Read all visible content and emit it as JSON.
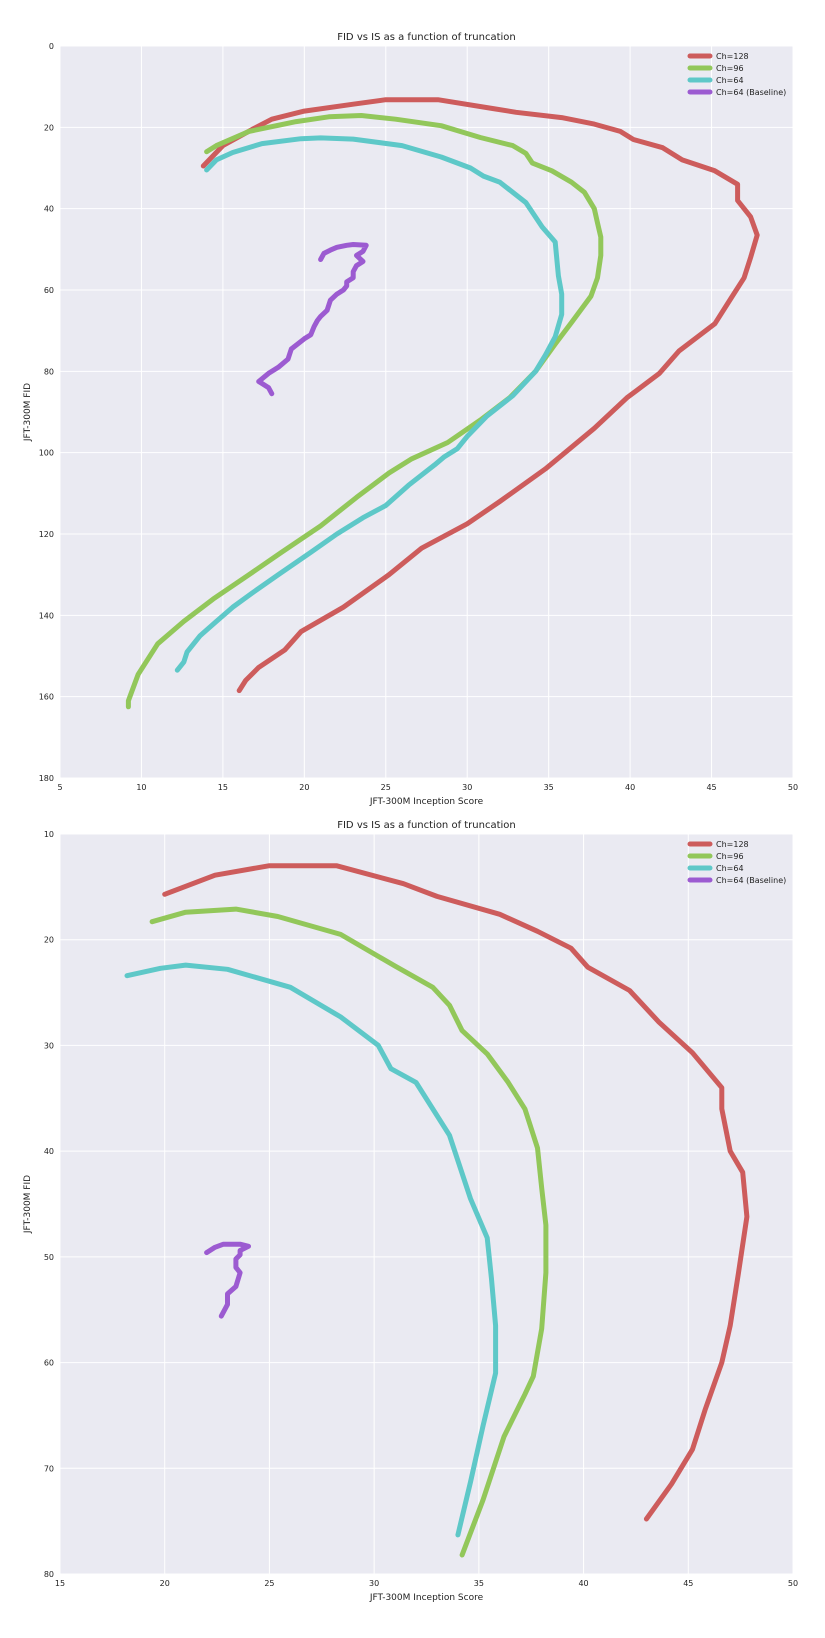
{
  "chart_data": [
    {
      "type": "line",
      "title": "FID vs IS as a function of truncation",
      "xlabel": "JFT-300M Inception Score",
      "ylabel": "JFT-300M FID",
      "xlim": [
        5,
        50
      ],
      "ylim": [
        0,
        180
      ],
      "y_inverted": true,
      "xticks": [
        5,
        10,
        15,
        20,
        25,
        30,
        35,
        40,
        45,
        50
      ],
      "yticks": [
        0,
        20,
        40,
        60,
        80,
        100,
        120,
        140,
        160,
        180
      ],
      "grid": true,
      "legend_position": "top-right",
      "series": [
        {
          "name": "Ch=128",
          "color": "#cd5c5c",
          "x": [
            16.0,
            16.4,
            17.2,
            18.8,
            19.8,
            22.4,
            25.2,
            27.2,
            30.0,
            32.0,
            34.8,
            37.8,
            39.8,
            41.8,
            43.0,
            45.2,
            46.2,
            47.0,
            47.4,
            47.8,
            47.4,
            46.6,
            46.6,
            45.2,
            43.2,
            42.0,
            40.2,
            39.4,
            37.8,
            35.8,
            33.0,
            31.6,
            28.2,
            25.0,
            23.0,
            20.0,
            18.0,
            16.8,
            15.0,
            13.8
          ],
          "y": [
            158.5,
            156.0,
            152.8,
            148.5,
            144.0,
            138.0,
            130.0,
            123.5,
            117.5,
            112.0,
            104.0,
            94.0,
            86.5,
            80.5,
            75.0,
            68.3,
            62.0,
            57.0,
            52.0,
            46.5,
            42.0,
            38.0,
            34.0,
            30.7,
            28.0,
            25.0,
            23.0,
            21.0,
            19.2,
            17.6,
            16.3,
            15.4,
            13.2,
            13.2,
            14.3,
            16.0,
            18.0,
            20.5,
            24.5,
            29.5
          ]
        },
        {
          "name": "Ch=96",
          "color": "#92c75a",
          "x": [
            9.2,
            9.2,
            9.8,
            11.0,
            12.6,
            14.4,
            16.6,
            18.6,
            21.0,
            23.2,
            25.2,
            26.6,
            28.8,
            30.8,
            32.6,
            34.2,
            35.4,
            36.4,
            37.6,
            38.0,
            38.2,
            38.2,
            38.0,
            37.8,
            37.2,
            36.4,
            35.2,
            34.0,
            33.6,
            32.8,
            30.8,
            28.4,
            25.6,
            23.5,
            21.5,
            19.5,
            16.6,
            14.6,
            14.0
          ],
          "y": [
            162.5,
            161.0,
            154.5,
            147.0,
            141.5,
            136.0,
            130.0,
            124.5,
            118.0,
            111.0,
            105.0,
            101.5,
            97.5,
            92.0,
            86.5,
            80.0,
            73.3,
            68.0,
            61.5,
            57.0,
            51.5,
            47.0,
            43.5,
            40.0,
            36.0,
            33.5,
            30.7,
            28.8,
            26.4,
            24.5,
            22.5,
            19.6,
            18.0,
            17.1,
            17.4,
            18.6,
            21.0,
            24.5,
            26.0
          ]
        },
        {
          "name": "Ch=64",
          "color": "#5ec8c8",
          "x": [
            12.2,
            12.6,
            12.8,
            13.6,
            14.6,
            15.6,
            16.8,
            18.4,
            20.4,
            22.0,
            23.6,
            25.0,
            26.4,
            28.0,
            28.6,
            29.4,
            30.0,
            31.2,
            32.8,
            34.2,
            34.8,
            35.4,
            35.8,
            35.8,
            35.6,
            35.4,
            34.6,
            33.6,
            32.0,
            31.0,
            30.2,
            28.4,
            26.0,
            23.0,
            21.0,
            19.8,
            17.4,
            15.6,
            14.6,
            14.0
          ],
          "y": [
            153.5,
            151.5,
            149.0,
            145.0,
            141.5,
            138.0,
            134.5,
            130.0,
            124.5,
            120.0,
            116.0,
            113.0,
            108.0,
            103.0,
            101.0,
            99.0,
            96.0,
            91.0,
            86.0,
            80.0,
            76.0,
            71.5,
            66.0,
            61.0,
            56.5,
            48.2,
            44.5,
            38.5,
            33.5,
            32.0,
            30.0,
            27.3,
            24.5,
            22.9,
            22.6,
            22.8,
            24.0,
            26.2,
            28.0,
            30.5
          ]
        },
        {
          "name": "Ch=64 (Baseline)",
          "color": "#9c5bd1",
          "x": [
            18.0,
            17.8,
            17.4,
            17.2,
            17.8,
            18.4,
            19.0,
            19.2,
            20.0,
            20.4,
            20.6,
            20.8,
            21.0,
            21.4,
            21.6,
            22.0,
            22.4,
            22.6,
            22.6,
            23.0,
            23.0,
            23.2,
            23.6,
            23.2,
            23.6,
            23.8,
            23.0,
            22.6,
            22.0,
            21.6,
            21.2,
            21.0
          ],
          "y": [
            85.5,
            84.0,
            83.0,
            82.5,
            80.5,
            79.0,
            77.0,
            74.5,
            72.0,
            71.0,
            69.0,
            67.5,
            66.5,
            65.0,
            62.5,
            61.0,
            60.0,
            59.0,
            58.0,
            57.0,
            55.5,
            54.0,
            53.0,
            51.5,
            50.5,
            49.0,
            48.8,
            49.0,
            49.5,
            50.2,
            51.0,
            52.5
          ]
        }
      ]
    },
    {
      "type": "line",
      "title": "FID vs IS as a function of truncation",
      "xlabel": "JFT-300M Inception Score",
      "ylabel": "JFT-300M FID",
      "xlim": [
        15,
        50
      ],
      "ylim": [
        10,
        80
      ],
      "y_inverted": true,
      "xticks": [
        15,
        20,
        25,
        30,
        35,
        40,
        45,
        50
      ],
      "yticks": [
        10,
        20,
        30,
        40,
        50,
        60,
        70,
        80
      ],
      "grid": true,
      "legend_position": "top-right",
      "series": [
        {
          "name": "Ch=128",
          "color": "#cd5c5c",
          "x": [
            43.0,
            44.2,
            45.2,
            45.8,
            46.6,
            47.0,
            47.4,
            47.8,
            47.6,
            47.0,
            46.8,
            46.6,
            46.6,
            45.2,
            43.6,
            42.2,
            40.2,
            39.4,
            37.8,
            36.0,
            33.0,
            31.4,
            28.2,
            25.0,
            22.4,
            20.0
          ],
          "y": [
            74.8,
            71.5,
            68.2,
            64.5,
            60.0,
            56.5,
            51.5,
            46.2,
            42.0,
            40.0,
            38.0,
            36.0,
            34.0,
            30.7,
            27.8,
            24.8,
            22.6,
            20.8,
            19.2,
            17.6,
            15.9,
            14.7,
            13.0,
            13.0,
            13.9,
            15.7
          ]
        },
        {
          "name": "Ch=96",
          "color": "#92c75a",
          "x": [
            34.2,
            35.2,
            36.2,
            37.2,
            37.6,
            38.0,
            38.2,
            38.2,
            38.0,
            37.8,
            37.2,
            36.4,
            35.4,
            34.2,
            33.6,
            32.8,
            31.0,
            28.4,
            25.4,
            23.4,
            21.0,
            19.4
          ],
          "y": [
            78.2,
            73.0,
            67.0,
            63.0,
            61.3,
            56.8,
            51.5,
            47.0,
            43.5,
            39.7,
            36.0,
            33.5,
            30.8,
            28.6,
            26.2,
            24.5,
            22.5,
            19.5,
            17.8,
            17.1,
            17.4,
            18.3
          ]
        },
        {
          "name": "Ch=64",
          "color": "#5ec8c8",
          "x": [
            34.0,
            34.6,
            35.2,
            35.8,
            35.8,
            35.6,
            35.4,
            34.6,
            33.6,
            32.0,
            30.8,
            30.2,
            28.4,
            26.0,
            23.0,
            21.0,
            19.8,
            18.2
          ],
          "y": [
            76.3,
            71.3,
            66.0,
            61.0,
            56.5,
            52.0,
            48.2,
            44.5,
            38.5,
            33.5,
            32.2,
            30.0,
            27.3,
            24.5,
            22.8,
            22.4,
            22.7,
            23.4
          ]
        },
        {
          "name": "Ch=64 (Baseline)",
          "color": "#9c5bd1",
          "x": [
            22.7,
            23.0,
            23.0,
            23.4,
            23.6,
            23.4,
            23.4,
            23.6,
            23.6,
            24.0,
            23.6,
            23.2,
            22.8,
            22.4,
            22.0
          ],
          "y": [
            55.6,
            54.5,
            53.5,
            52.8,
            51.5,
            51.0,
            50.2,
            49.8,
            49.4,
            49.0,
            48.8,
            48.8,
            48.8,
            49.1,
            49.6
          ]
        }
      ]
    }
  ]
}
